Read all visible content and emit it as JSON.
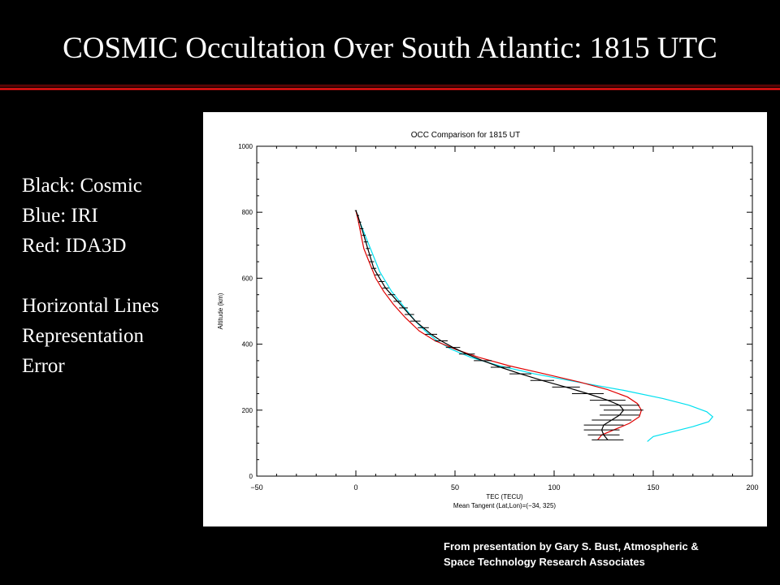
{
  "slide": {
    "title": "COSMIC Occultation Over South Atlantic: 1815 UTC",
    "legend_lines": [
      "Black: Cosmic",
      "Blue: IRI",
      "Red: IDA3D"
    ],
    "note_lines": [
      "Horizontal Lines",
      "Representation",
      "Error"
    ],
    "credit_lines": [
      "From presentation by Gary S. Bust, Atmospheric &",
      "Space Technology Research Associates"
    ]
  },
  "colors": {
    "background": "#000000",
    "accent_rule": "#cc1010",
    "cosmic": "#000000",
    "iri": "#00e0f0",
    "ida3d": "#e00000"
  },
  "chart_data": {
    "type": "line",
    "title": "OCC Comparison for 1815 UT",
    "xlabel": "TEC (TECU)",
    "ylabel": "Altitude (km)",
    "subtitle": "Mean Tangent (Lat,Lon)=(−34, 325)",
    "xlim": [
      -50,
      200
    ],
    "ylim": [
      0,
      1000
    ],
    "xticks": [
      -50,
      0,
      50,
      100,
      150,
      200
    ],
    "yticks": [
      0,
      200,
      400,
      600,
      800,
      1000
    ],
    "grid": false,
    "series": [
      {
        "color": "#000000",
        "points": [
          [
            0,
            805
          ],
          [
            1,
            790
          ],
          [
            2,
            770
          ],
          [
            3,
            750
          ],
          [
            4,
            730
          ],
          [
            5,
            710
          ],
          [
            6,
            690
          ],
          [
            7,
            670
          ],
          [
            8,
            650
          ],
          [
            9,
            630
          ],
          [
            11,
            610
          ],
          [
            13,
            590
          ],
          [
            15,
            570
          ],
          [
            18,
            550
          ],
          [
            21,
            530
          ],
          [
            24,
            510
          ],
          [
            27,
            490
          ],
          [
            30,
            470
          ],
          [
            34,
            450
          ],
          [
            38,
            430
          ],
          [
            43,
            410
          ],
          [
            49,
            390
          ],
          [
            56,
            370
          ],
          [
            64,
            350
          ],
          [
            73,
            330
          ],
          [
            83,
            310
          ],
          [
            94,
            290
          ],
          [
            106,
            270
          ],
          [
            117,
            250
          ],
          [
            127,
            230
          ],
          [
            133,
            215
          ],
          [
            135,
            200
          ],
          [
            133,
            185
          ],
          [
            129,
            170
          ],
          [
            125,
            155
          ],
          [
            124,
            140
          ],
          [
            125,
            125
          ],
          [
            127,
            110
          ]
        ],
        "error_half_width": [
          0.5,
          0.6,
          0.7,
          0.8,
          0.9,
          1.0,
          1.0,
          1.1,
          1.2,
          1.3,
          1.4,
          1.5,
          1.6,
          1.8,
          2.0,
          2.2,
          2.4,
          2.6,
          2.8,
          3.0,
          3.3,
          3.6,
          4,
          4.5,
          5,
          5.5,
          6,
          7,
          8,
          9,
          10,
          10,
          10,
          10,
          10,
          9,
          8,
          8
        ]
      },
      {
        "color": "#00e0f0",
        "points": [
          [
            0,
            805
          ],
          [
            2,
            770
          ],
          [
            4,
            740
          ],
          [
            6,
            710
          ],
          [
            8,
            680
          ],
          [
            10,
            650
          ],
          [
            12,
            620
          ],
          [
            15,
            590
          ],
          [
            18,
            560
          ],
          [
            22,
            530
          ],
          [
            26,
            500
          ],
          [
            30,
            470
          ],
          [
            35,
            440
          ],
          [
            41,
            410
          ],
          [
            48,
            385
          ],
          [
            58,
            360
          ],
          [
            72,
            335
          ],
          [
            90,
            310
          ],
          [
            112,
            285
          ],
          [
            135,
            260
          ],
          [
            155,
            235
          ],
          [
            168,
            215
          ],
          [
            177,
            195
          ],
          [
            180,
            180
          ],
          [
            178,
            165
          ],
          [
            170,
            150
          ],
          [
            160,
            135
          ],
          [
            150,
            120
          ],
          [
            147,
            105
          ]
        ]
      },
      {
        "color": "#e00000",
        "points": [
          [
            0,
            805
          ],
          [
            1,
            780
          ],
          [
            2,
            750
          ],
          [
            3,
            720
          ],
          [
            4,
            690
          ],
          [
            6,
            660
          ],
          [
            8,
            630
          ],
          [
            10,
            600
          ],
          [
            14,
            560
          ],
          [
            19,
            520
          ],
          [
            25,
            480
          ],
          [
            32,
            440
          ],
          [
            40,
            410
          ],
          [
            50,
            385
          ],
          [
            62,
            360
          ],
          [
            77,
            335
          ],
          [
            95,
            310
          ],
          [
            113,
            285
          ],
          [
            127,
            262
          ],
          [
            137,
            240
          ],
          [
            142,
            220
          ],
          [
            144,
            200
          ],
          [
            143,
            180
          ],
          [
            138,
            160
          ],
          [
            130,
            140
          ],
          [
            124,
            125
          ],
          [
            122,
            110
          ]
        ]
      }
    ]
  }
}
